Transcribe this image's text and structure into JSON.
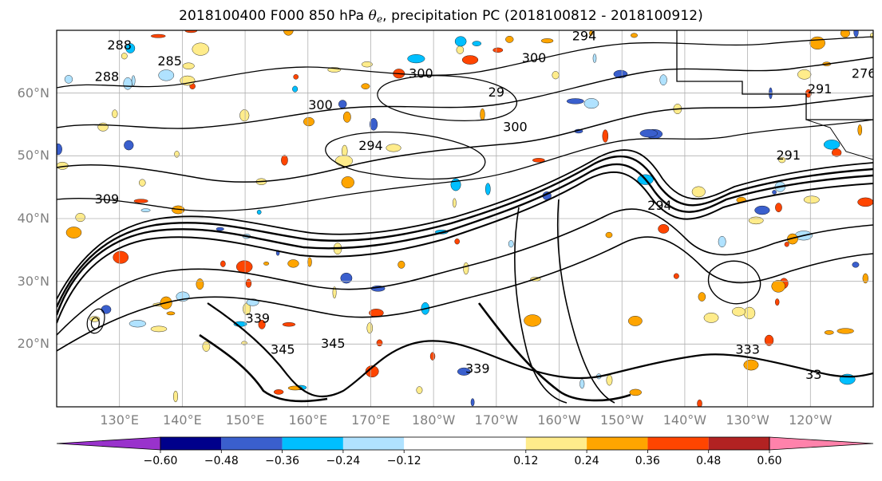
{
  "title": {
    "prefix": "2018100400 F000 850 hPa ",
    "symbol": "θ",
    "subscript": "e",
    "suffix": ", precipitation PC (2018100812 - 2018100912)"
  },
  "map": {
    "lat_labels": [
      "60°N",
      "50°N",
      "40°N",
      "30°N",
      "20°N"
    ],
    "lat_values": [
      60,
      50,
      40,
      30,
      20
    ],
    "lat_range": [
      10,
      70
    ],
    "lon_labels": [
      "130°E",
      "140°E",
      "150°E",
      "160°E",
      "170°E",
      "180°W",
      "170°W",
      "160°W",
      "150°W",
      "140°W",
      "130°W",
      "120°W"
    ],
    "lon_values": [
      130,
      140,
      150,
      160,
      170,
      180,
      190,
      200,
      210,
      220,
      230,
      240
    ],
    "lon_range": [
      120,
      250
    ],
    "contour_labels": [
      {
        "text": "288",
        "lon": 130,
        "lat": 67.5
      },
      {
        "text": "285",
        "lon": 138,
        "lat": 65
      },
      {
        "text": "288",
        "lon": 128,
        "lat": 62.5
      },
      {
        "text": "300",
        "lon": 178,
        "lat": 63
      },
      {
        "text": "294",
        "lon": 204,
        "lat": 69
      },
      {
        "text": "300",
        "lon": 196,
        "lat": 65.5
      },
      {
        "text": "300",
        "lon": 162,
        "lat": 58
      },
      {
        "text": "29",
        "lon": 190,
        "lat": 60
      },
      {
        "text": "300",
        "lon": 193,
        "lat": 54.5
      },
      {
        "text": "294",
        "lon": 170,
        "lat": 51.5
      },
      {
        "text": "291",
        "lon": 241.5,
        "lat": 60.5
      },
      {
        "text": "276",
        "lon": 248.5,
        "lat": 63
      },
      {
        "text": "291",
        "lon": 236.5,
        "lat": 50
      },
      {
        "text": "294",
        "lon": 216,
        "lat": 42
      },
      {
        "text": "309",
        "lon": 128,
        "lat": 43
      },
      {
        "text": "339",
        "lon": 152,
        "lat": 24
      },
      {
        "text": "345",
        "lon": 156,
        "lat": 19
      },
      {
        "text": "345",
        "lon": 164,
        "lat": 20
      },
      {
        "text": "339",
        "lon": 187,
        "lat": 16
      },
      {
        "text": "333",
        "lon": 230,
        "lat": 19
      },
      {
        "text": "33",
        "lon": 240.5,
        "lat": 15
      }
    ],
    "colors": {
      "contour": "#000000",
      "grid": "#b0b0b0",
      "tick_label": "#808080"
    }
  },
  "colorbar": {
    "tick_labels": [
      "−0.60",
      "−0.48",
      "−0.36",
      "−0.24",
      "−0.12",
      "0.12",
      "0.24",
      "0.36",
      "0.48",
      "0.60"
    ],
    "ticks": [
      -0.6,
      -0.48,
      -0.36,
      -0.24,
      -0.12,
      0.12,
      0.24,
      0.36,
      0.48,
      0.6
    ],
    "levels": [
      -0.72,
      -0.6,
      -0.48,
      -0.36,
      -0.24,
      -0.12,
      0.12,
      0.24,
      0.36,
      0.48,
      0.6,
      0.72
    ],
    "colors": [
      "#9932cc",
      "#00008b",
      "#3a5fcd",
      "#00bfff",
      "#b0e2ff",
      "#ffffff",
      "#ffec8b",
      "#ffa500",
      "#ff4500",
      "#b22222",
      "#ff82ab"
    ],
    "extend": "both"
  }
}
